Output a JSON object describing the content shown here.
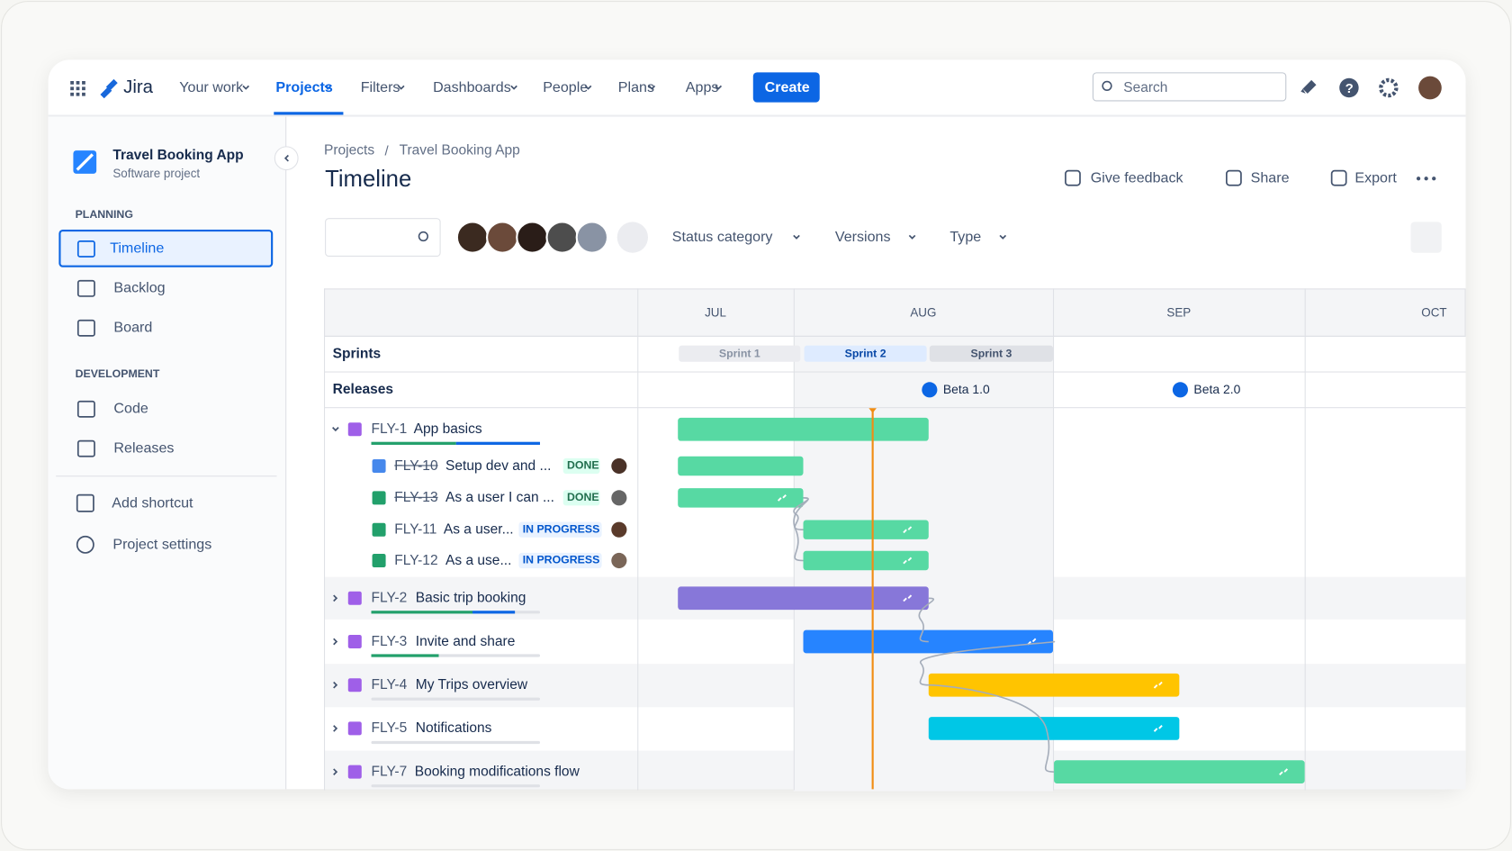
{
  "nav": {
    "logo": "Jira",
    "items": [
      "Your work",
      "Projects",
      "Filters",
      "Dashboards",
      "People",
      "Plans",
      "Apps"
    ],
    "create": "Create",
    "search": "Search"
  },
  "sidebar": {
    "project": "Travel Booking App",
    "subtitle": "Software project",
    "sections": [
      {
        "title": "PLANNING",
        "items": [
          "Timeline",
          "Backlog",
          "Board"
        ]
      },
      {
        "title": "DEVELOPMENT",
        "items": [
          "Code",
          "Releases"
        ]
      }
    ],
    "footer": [
      "Add shortcut",
      "Project settings"
    ]
  },
  "breadcrumb": [
    "Projects",
    "Travel Booking App"
  ],
  "title": "Timeline",
  "actions": [
    "Give feedback",
    "Share",
    "Export"
  ],
  "filters": [
    "Status category",
    "Versions",
    "Type"
  ],
  "timeline": {
    "months": [
      "JUL",
      "AUG",
      "SEP",
      "OCT"
    ],
    "sprints_label": "Sprints",
    "sprints": [
      "Sprint 1",
      "Sprint 2",
      "Sprint 3"
    ],
    "releases_label": "Releases",
    "releases": [
      "Beta 1.0",
      "Beta 2.0"
    ],
    "issues": [
      {
        "key": "FLY-1",
        "title": "App basics",
        "children": [
          {
            "key": "FLY-10",
            "title": "Setup dev and ...",
            "status": "DONE"
          },
          {
            "key": "FLY-13",
            "title": "As a user I can ...",
            "status": "DONE"
          },
          {
            "key": "FLY-11",
            "title": "As a user...",
            "status": "IN PROGRESS"
          },
          {
            "key": "FLY-12",
            "title": "As a use...",
            "status": "IN PROGRESS"
          }
        ]
      },
      {
        "key": "FLY-2",
        "title": "Basic trip booking"
      },
      {
        "key": "FLY-3",
        "title": "Invite and share"
      },
      {
        "key": "FLY-4",
        "title": "My Trips overview"
      },
      {
        "key": "FLY-5",
        "title": "Notifications"
      },
      {
        "key": "FLY-7",
        "title": "Booking modifications flow"
      }
    ]
  }
}
